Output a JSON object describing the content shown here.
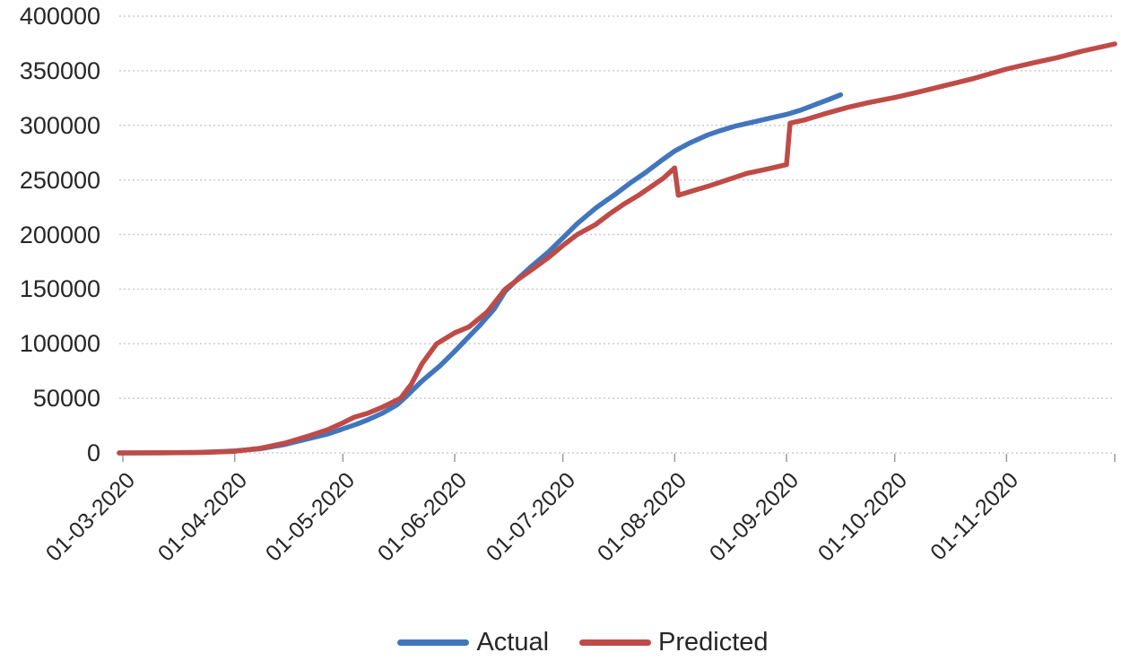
{
  "chart_data": {
    "type": "line",
    "title": "",
    "x_axis": {
      "unit": "date (dd-mm-yyyy)",
      "tick_labels": [
        "01-03-2020",
        "01-04-2020",
        "01-05-2020",
        "01-06-2020",
        "01-07-2020",
        "01-08-2020",
        "01-09-2020",
        "01-10-2020",
        "01-11-2020"
      ],
      "month_tick_day_offsets": [
        0,
        31,
        61,
        92,
        122,
        153,
        184,
        214,
        245
      ],
      "axis_end_day_offset": 275,
      "label_rotation_deg": -45
    },
    "y_axis": {
      "min": 0,
      "max": 400000,
      "tick_interval": 50000,
      "tick_labels": [
        "0",
        "50000",
        "100000",
        "150000",
        "200000",
        "250000",
        "300000",
        "350000",
        "400000"
      ]
    },
    "grid": {
      "horizontal": "dotted",
      "vertical": "none"
    },
    "legend": {
      "position": "bottom-center"
    },
    "style": {
      "grid_color": "#cccccc",
      "tick_color": "#9b9b9b",
      "text_color": "#262626",
      "line_width": 5.5
    },
    "series": [
      {
        "name": "Actual",
        "color": "#4176BD",
        "x_unit": "days since 01-03-2020",
        "points": [
          [
            -1,
            0
          ],
          [
            0,
            0
          ],
          [
            10,
            100
          ],
          [
            20,
            400
          ],
          [
            25,
            900
          ],
          [
            31,
            1800
          ],
          [
            38,
            3800
          ],
          [
            45,
            7800
          ],
          [
            52,
            13500
          ],
          [
            57,
            17500
          ],
          [
            61,
            22000
          ],
          [
            65,
            26500
          ],
          [
            68,
            30500
          ],
          [
            72,
            36500
          ],
          [
            76,
            44000
          ],
          [
            78,
            50000
          ],
          [
            83,
            66000
          ],
          [
            88,
            80000
          ],
          [
            92,
            93000
          ],
          [
            94,
            100000
          ],
          [
            99,
            117000
          ],
          [
            103,
            132000
          ],
          [
            106,
            148000
          ],
          [
            110,
            161000
          ],
          [
            113,
            170000
          ],
          [
            118,
            184000
          ],
          [
            122,
            197000
          ],
          [
            126,
            210000
          ],
          [
            131,
            224000
          ],
          [
            134,
            231000
          ],
          [
            137,
            238000
          ],
          [
            141,
            248000
          ],
          [
            145,
            257000
          ],
          [
            149,
            267000
          ],
          [
            153,
            276500
          ],
          [
            157,
            283500
          ],
          [
            162,
            291000
          ],
          [
            166,
            295500
          ],
          [
            170,
            299500
          ],
          [
            176,
            304000
          ],
          [
            180,
            307000
          ],
          [
            184,
            310000
          ],
          [
            188,
            314000
          ],
          [
            192,
            319000
          ],
          [
            196,
            324000
          ],
          [
            199,
            328000
          ]
        ]
      },
      {
        "name": "Predicted",
        "color": "#BF4B47",
        "x_unit": "days since 01-03-2020",
        "points": [
          [
            -1,
            0
          ],
          [
            0,
            0
          ],
          [
            12,
            80
          ],
          [
            22,
            400
          ],
          [
            31,
            1500
          ],
          [
            38,
            4200
          ],
          [
            45,
            9000
          ],
          [
            52,
            16000
          ],
          [
            57,
            21500
          ],
          [
            61,
            27500
          ],
          [
            64,
            32500
          ],
          [
            68,
            36500
          ],
          [
            72,
            42000
          ],
          [
            77,
            50000
          ],
          [
            80,
            63000
          ],
          [
            83,
            82000
          ],
          [
            87,
            100000
          ],
          [
            92,
            110000
          ],
          [
            96,
            115500
          ],
          [
            101,
            129000
          ],
          [
            106,
            150000
          ],
          [
            110,
            160000
          ],
          [
            113,
            167000
          ],
          [
            118,
            179000
          ],
          [
            122,
            190000
          ],
          [
            126,
            200000
          ],
          [
            131,
            209000
          ],
          [
            135,
            219000
          ],
          [
            139,
            228000
          ],
          [
            143,
            236000
          ],
          [
            147,
            245000
          ],
          [
            150,
            252000
          ],
          [
            153,
            261000
          ],
          [
            154,
            236000
          ],
          [
            158,
            240000
          ],
          [
            163,
            245000
          ],
          [
            168,
            250500
          ],
          [
            173,
            256000
          ],
          [
            178,
            259500
          ],
          [
            184,
            264000
          ],
          [
            185,
            302000
          ],
          [
            189,
            305000
          ],
          [
            195,
            311000
          ],
          [
            201,
            316500
          ],
          [
            207,
            321000
          ],
          [
            214,
            325500
          ],
          [
            220,
            330000
          ],
          [
            228,
            336500
          ],
          [
            236,
            343000
          ],
          [
            245,
            351500
          ],
          [
            252,
            357000
          ],
          [
            259,
            362000
          ],
          [
            266,
            368000
          ],
          [
            275,
            374500
          ]
        ]
      }
    ]
  }
}
